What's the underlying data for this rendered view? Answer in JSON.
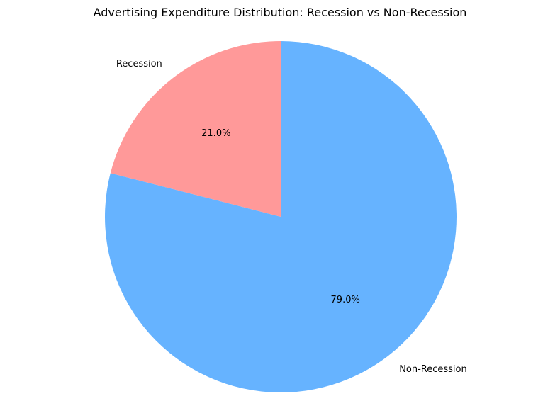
{
  "chart_data": {
    "type": "pie",
    "title": "Advertising Expenditure Distribution: Recession vs Non-Recession",
    "slices": [
      {
        "label": "Recession",
        "value": 21.0,
        "percent_label": "21.0%",
        "color": "#ff9999"
      },
      {
        "label": "Non-Recession",
        "value": 79.0,
        "percent_label": "79.0%",
        "color": "#66b3ff"
      }
    ],
    "start_angle_deg": 90,
    "direction": "counterclockwise",
    "legend": "none"
  }
}
